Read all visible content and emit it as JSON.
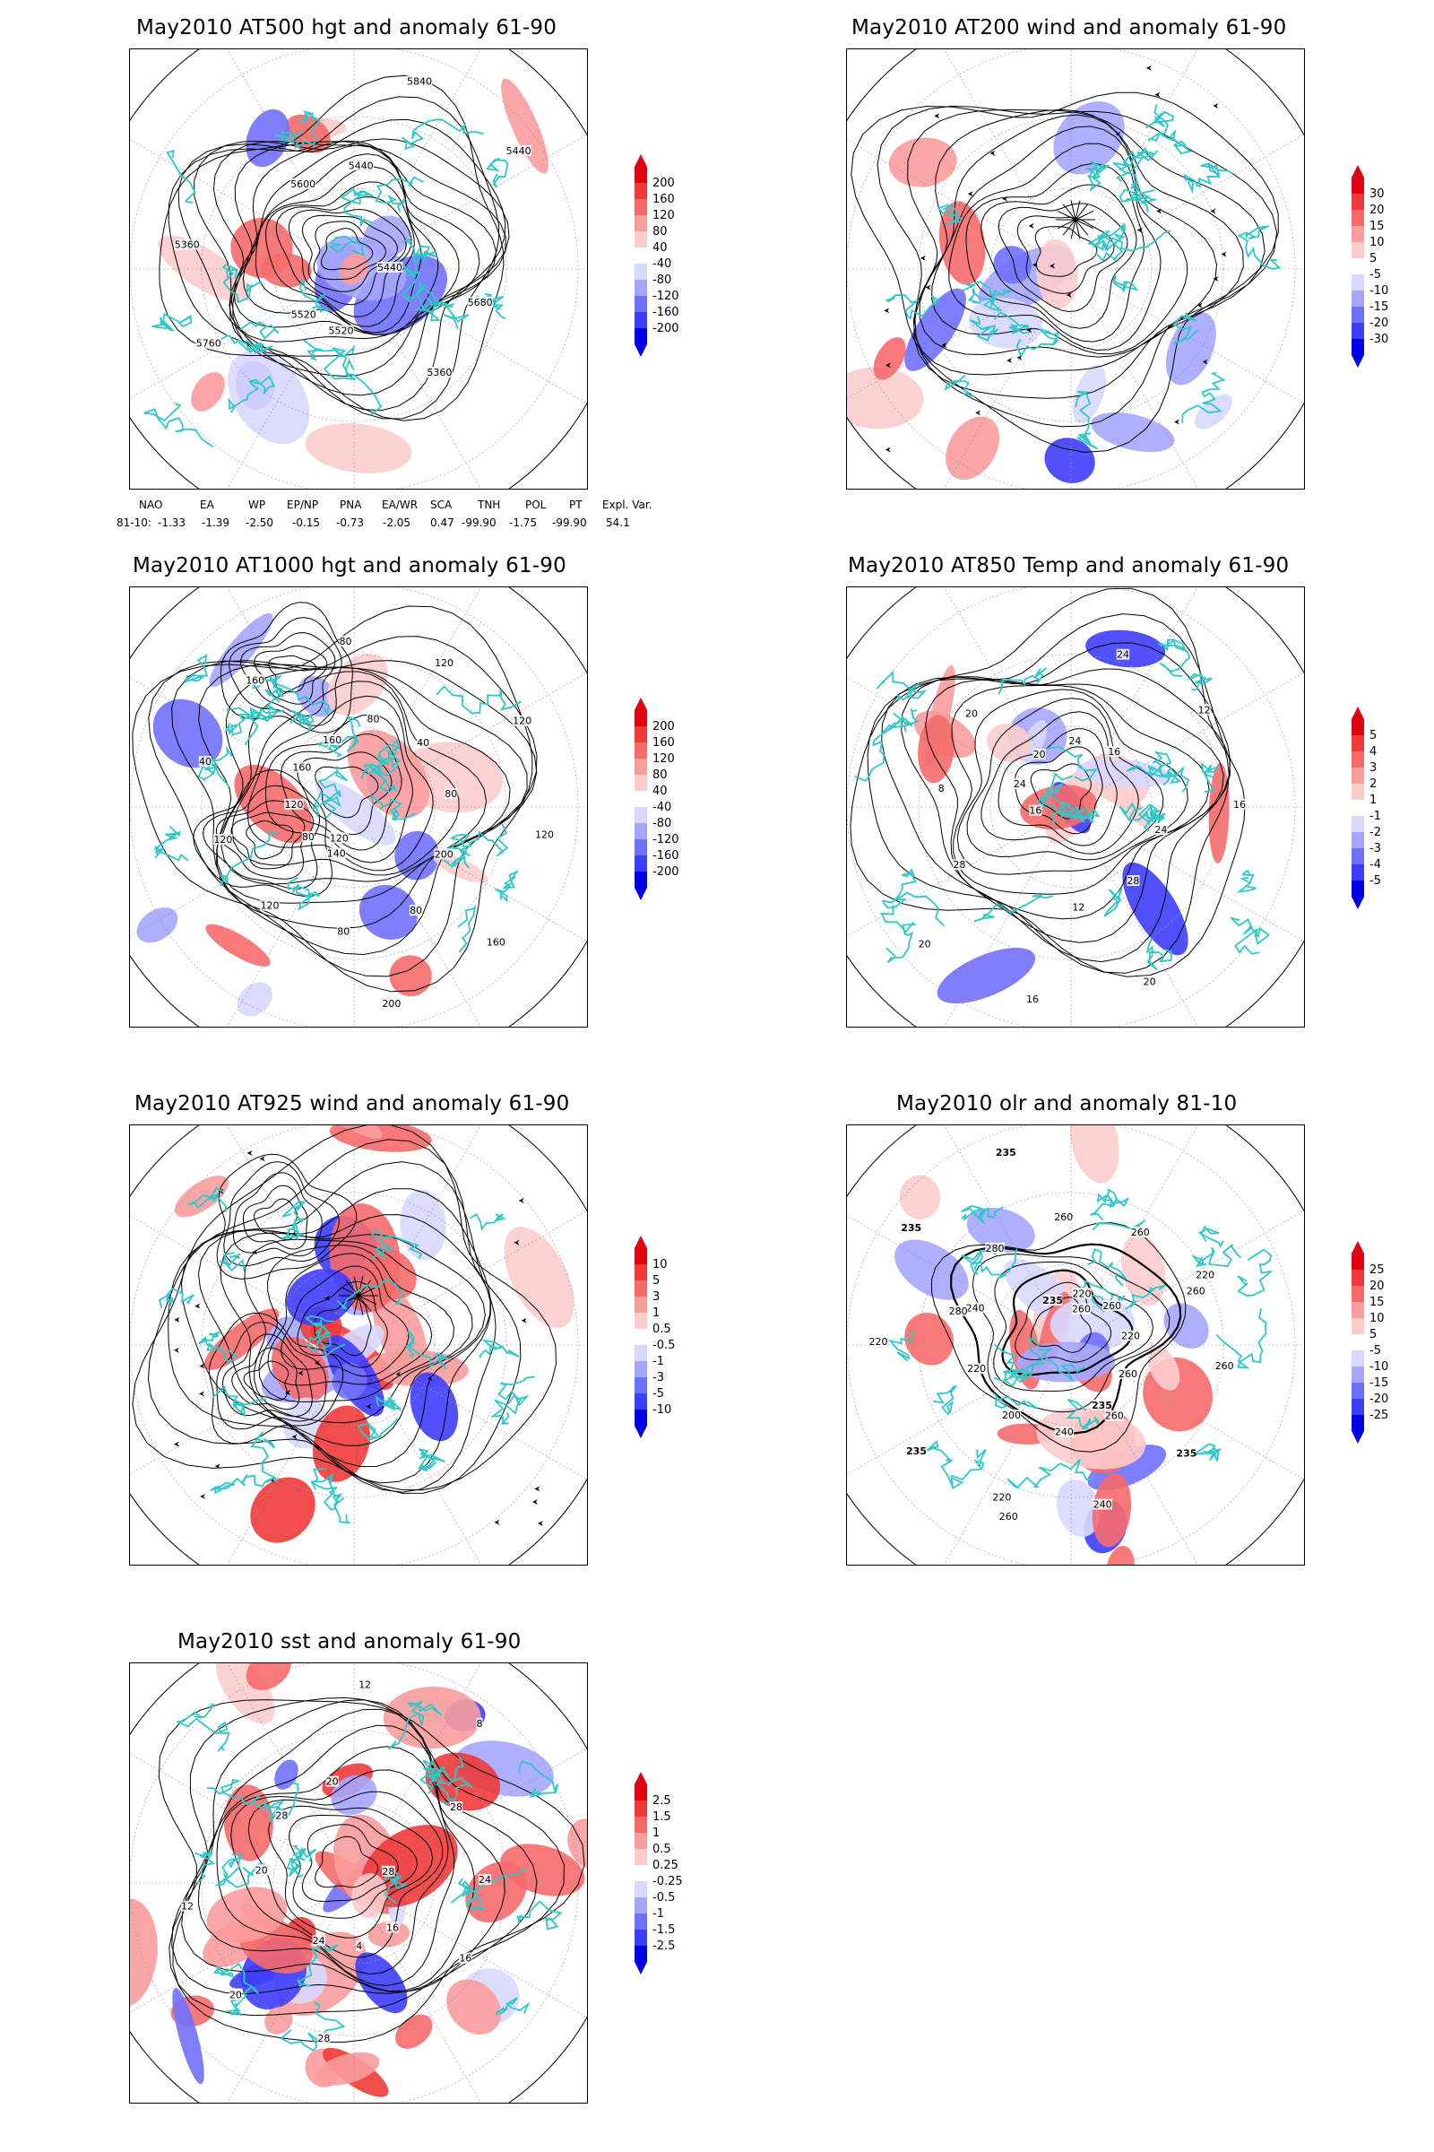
{
  "panels": [
    {
      "id": "p1",
      "title": "May2010 AT500 hgt and anomaly 61-90",
      "kind": "hgt",
      "colorbar": [
        "200",
        "160",
        "120",
        "80",
        "40",
        "-40",
        "-80",
        "-120",
        "-160",
        "-200"
      ],
      "contour_labels": [
        "5440",
        "5520",
        "5440",
        "5360",
        "5360",
        "5440",
        "5520",
        "5600",
        "5680",
        "5760",
        "5840"
      ]
    },
    {
      "id": "p2",
      "title": "May2010 AT200 wind and anomaly 61-90",
      "kind": "wind",
      "colorbar": [
        "30",
        "20",
        "15",
        "10",
        "5",
        "-5",
        "-10",
        "-15",
        "-20",
        "-30"
      ],
      "contour_labels": []
    },
    {
      "id": "p3",
      "title": "May2010 AT1000 hgt and anomaly 61-90",
      "kind": "hgt",
      "colorbar": [
        "200",
        "160",
        "120",
        "80",
        "40",
        "-40",
        "-80",
        "-120",
        "-160",
        "-200"
      ],
      "contour_labels": [
        "120",
        "160",
        "200",
        "120",
        "120",
        "200",
        "160",
        "80",
        "120",
        "80",
        "160",
        "120",
        "40",
        "80",
        "160",
        "120",
        "80",
        "80",
        "80",
        "40",
        "120",
        "140"
      ]
    },
    {
      "id": "p4",
      "title": "May2010 AT850 Temp and anomaly 61-90",
      "kind": "temp",
      "colorbar": [
        "5",
        "4",
        "3",
        "2",
        "1",
        "-1",
        "-2",
        "-3",
        "-4",
        "-5"
      ],
      "contour_labels": [
        "16",
        "16",
        "12",
        "20",
        "16",
        "20",
        "24",
        "28",
        "8",
        "12",
        "16",
        "20",
        "24",
        "28",
        "24",
        "20",
        "24"
      ]
    },
    {
      "id": "p5",
      "title": "May2010 AT925 wind and anomaly 61-90",
      "kind": "wind",
      "colorbar": [
        "10",
        "5",
        "3",
        "1",
        "0.5",
        "-0.5",
        "-1",
        "-3",
        "-5",
        "-10"
      ],
      "contour_labels": []
    },
    {
      "id": "p6",
      "title": "May2010 olr and anomaly 81-10",
      "kind": "olr",
      "colorbar": [
        "25",
        "20",
        "15",
        "10",
        "5",
        "-5",
        "-10",
        "-15",
        "-20",
        "-25"
      ],
      "contour_labels": [
        "260",
        "235",
        "240",
        "260",
        "220",
        "235",
        "260",
        "220",
        "260",
        "240",
        "235",
        "220",
        "200",
        "260",
        "235",
        "220",
        "260",
        "240",
        "280",
        "260",
        "235",
        "220",
        "260",
        "280",
        "220",
        "260",
        "235"
      ]
    },
    {
      "id": "p7",
      "title": "May2010 sst and anomaly 61-90",
      "kind": "sst",
      "colorbar": [
        "2.5",
        "1.5",
        "1",
        "0.5",
        "0.25",
        "-0.25",
        "-0.5",
        "-1",
        "-1.5",
        "-2.5"
      ],
      "contour_labels": [
        "28",
        "24",
        "20",
        "16",
        "12",
        "8",
        "4",
        "28",
        "24",
        "20",
        "12",
        "16",
        "20",
        "28",
        "28"
      ]
    }
  ],
  "teleconnections": {
    "headers": [
      "NAO",
      "EA",
      "WP",
      "EP/NP",
      "PNA",
      "EA/WR",
      "SCA",
      "TNH",
      "POL",
      "PT",
      "Expl. Var."
    ],
    "row_label": "81-10:",
    "values": [
      "-1.33",
      "-1.39",
      "-2.50",
      "-0.15",
      "-0.73",
      "-2.05",
      "0.47",
      "-99.90",
      "-1.75",
      "-99.90",
      "54.1"
    ]
  },
  "colors": {
    "coast": "#2ec8c8",
    "red_scale": [
      "#e0000f",
      "#f03a3a",
      "#f76a6a",
      "#fb9c9c",
      "#fccccc"
    ],
    "blue_scale": [
      "#d8d8ff",
      "#a6a6ff",
      "#7070ff",
      "#3d3dff",
      "#0000e6"
    ]
  }
}
